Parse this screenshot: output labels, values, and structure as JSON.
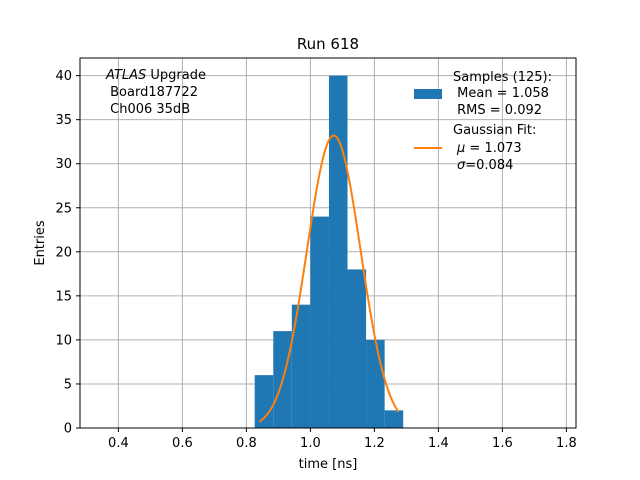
{
  "chart_data": {
    "type": "bar",
    "title": "Run 618",
    "xlabel": "time [ns]",
    "ylabel": "Entries",
    "xlim": [
      0.28,
      1.83
    ],
    "ylim": [
      0,
      42
    ],
    "xticks": [
      "0.4",
      "0.6",
      "0.8",
      "1.0",
      "1.2",
      "1.4",
      "1.6",
      "1.8"
    ],
    "yticks": [
      "0",
      "5",
      "10",
      "15",
      "20",
      "25",
      "30",
      "35",
      "40"
    ],
    "grid": true,
    "annotation": {
      "prefix": "ATLAS",
      "suffix": " Upgrade",
      "board": " Board187722",
      "channel": " Ch006 35dB"
    },
    "histogram": {
      "name": "Samples",
      "color": "#1f77b4",
      "bins": [
        {
          "x0": 0.826,
          "x1": 0.884,
          "count": 6
        },
        {
          "x0": 0.884,
          "x1": 0.942,
          "count": 11
        },
        {
          "x0": 0.942,
          "x1": 1.0,
          "count": 14
        },
        {
          "x0": 1.0,
          "x1": 1.058,
          "count": 24
        },
        {
          "x0": 1.058,
          "x1": 1.116,
          "count": 40
        },
        {
          "x0": 1.116,
          "x1": 1.174,
          "count": 18
        },
        {
          "x0": 1.174,
          "x1": 1.232,
          "count": 10
        },
        {
          "x0": 1.232,
          "x1": 1.29,
          "count": 2
        }
      ]
    },
    "fit": {
      "name": "Gaussian Fit",
      "color": "#ff7f0e",
      "mu": 1.073,
      "sigma": 0.084,
      "amplitude": 33.2,
      "xrange": [
        0.84,
        1.275
      ]
    },
    "legend": {
      "placement": "top-right",
      "samples_title": "Samples (125):",
      "samples_mean": " Mean = 1.058",
      "samples_rms": " RMS = 0.092",
      "fit_title": "Gaussian Fit:",
      "fit_mu_sym": "μ",
      "fit_mu_val": " = 1.073",
      "fit_sigma_sym": "σ",
      "fit_sigma_val": "=0.084"
    }
  }
}
